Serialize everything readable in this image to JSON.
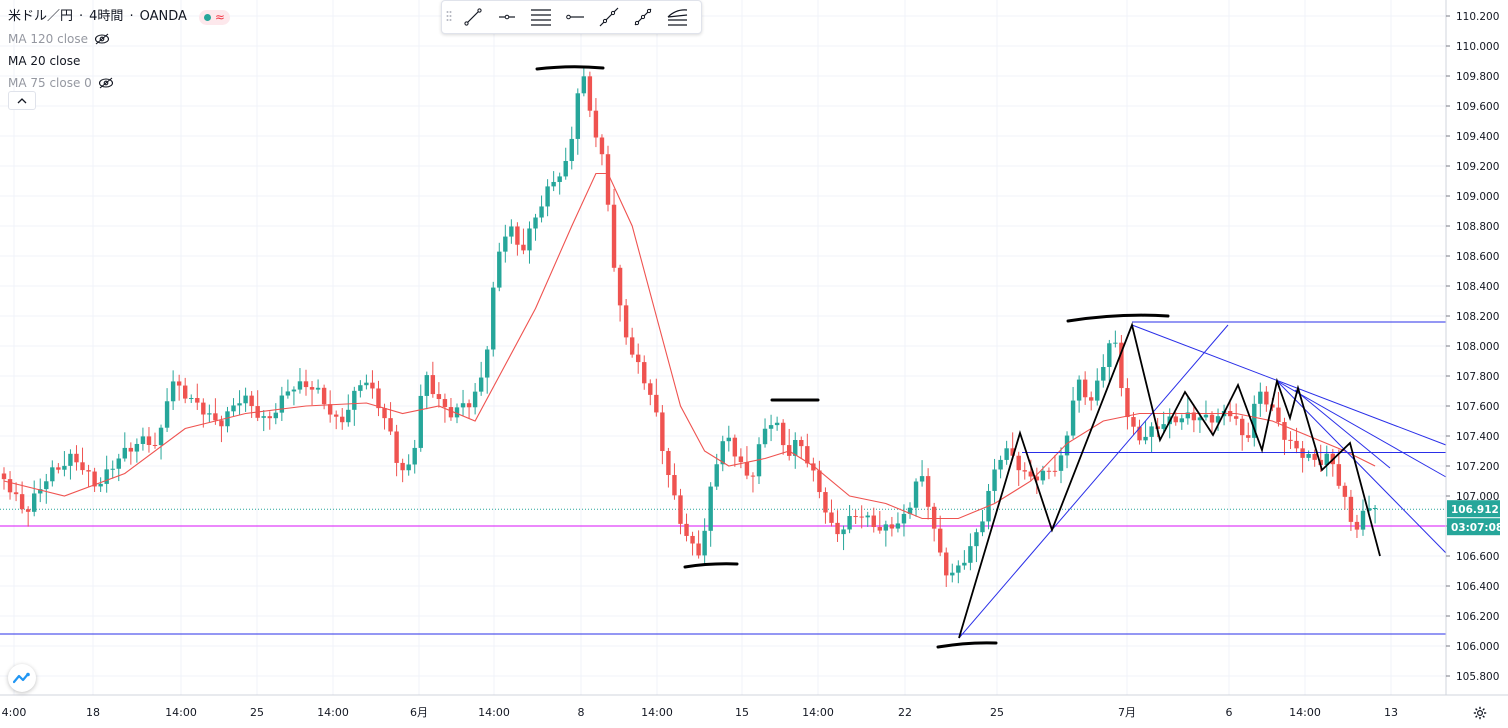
{
  "header": {
    "symbol": "米ドル／円",
    "interval": "4時間",
    "broker": "OANDA",
    "separator": " · "
  },
  "indicators": [
    {
      "label": "MA 120 close",
      "hidden": true
    },
    {
      "label": "MA 20 close",
      "hidden": false
    },
    {
      "label": "MA 75 close 0",
      "hidden": true
    }
  ],
  "colors": {
    "up": "#26a69a",
    "down": "#ef5350",
    "ma20": "#ef5350",
    "hline_magenta": "#e040fb",
    "trend_blue": "#2a2fe8",
    "drawing_black": "#000000",
    "grid": "#f0f3fa",
    "price_label_bg": "#26a69a"
  },
  "price_axis": {
    "ticks": [
      "110.200",
      "110.000",
      "109.800",
      "109.600",
      "109.400",
      "109.200",
      "109.000",
      "108.800",
      "108.600",
      "108.400",
      "108.200",
      "108.000",
      "107.800",
      "107.600",
      "107.400",
      "107.200",
      "107.000",
      "106.800",
      "106.600",
      "106.400",
      "106.200",
      "106.000",
      "105.800"
    ],
    "last_price": "106.912",
    "countdown": "03:07:08"
  },
  "time_axis": {
    "labels": [
      "4:00",
      "18",
      "14:00",
      "25",
      "14:00",
      "6月",
      "14:00",
      "8",
      "14:00",
      "15",
      "14:00",
      "22",
      "25",
      "7月",
      "6",
      "14:00",
      "13"
    ]
  },
  "toolbar": {
    "tools": [
      "trend-line-icon",
      "ray-icon",
      "parallel-channel-icon",
      "horizontal-ray-icon",
      "extended-line-icon",
      "info-line-icon",
      "fib-fan-icon"
    ]
  },
  "chart_data": {
    "type": "candlestick",
    "symbol": "米ドル／円",
    "interval": "4時間",
    "ylim": [
      105.75,
      110.25
    ],
    "x_labels": [
      "4:00",
      "18",
      "14:00",
      "25",
      "14:00",
      "6月",
      "14:00",
      "8",
      "14:00",
      "15",
      "14:00",
      "22",
      "25",
      "7月",
      "6",
      "14:00",
      "13"
    ],
    "last_price": 106.912,
    "segments": [
      [
        0,
        107.15
      ],
      [
        4,
        106.85
      ],
      [
        8,
        107.15
      ],
      [
        12,
        107.3
      ],
      [
        16,
        107.05
      ],
      [
        20,
        107.25
      ],
      [
        24,
        107.4
      ],
      [
        26,
        107.35
      ],
      [
        28,
        107.8
      ],
      [
        32,
        107.6
      ],
      [
        36,
        107.45
      ],
      [
        40,
        107.7
      ],
      [
        44,
        107.5
      ],
      [
        48,
        107.7
      ],
      [
        52,
        107.72
      ],
      [
        56,
        107.5
      ],
      [
        60,
        107.8
      ],
      [
        64,
        107.45
      ],
      [
        66,
        107.15
      ],
      [
        68,
        107.2
      ],
      [
        70,
        107.85
      ],
      [
        74,
        107.55
      ],
      [
        78,
        107.6
      ],
      [
        80,
        107.8
      ],
      [
        82,
        108.55
      ],
      [
        84,
        108.85
      ],
      [
        86,
        108.65
      ],
      [
        90,
        109.0
      ],
      [
        94,
        109.2
      ],
      [
        96,
        109.85
      ],
      [
        98,
        109.5
      ],
      [
        100,
        109.2
      ],
      [
        102,
        108.35
      ],
      [
        104,
        108.0
      ],
      [
        106,
        107.8
      ],
      [
        108,
        107.6
      ],
      [
        110,
        107.2
      ],
      [
        112,
        106.9
      ],
      [
        114,
        106.7
      ],
      [
        116,
        106.65
      ],
      [
        118,
        107.2
      ],
      [
        120,
        107.4
      ],
      [
        124,
        107.05
      ],
      [
        126,
        107.4
      ],
      [
        128,
        107.55
      ],
      [
        130,
        107.3
      ],
      [
        132,
        107.4
      ],
      [
        134,
        107.2
      ],
      [
        136,
        106.95
      ],
      [
        138,
        106.7
      ],
      [
        142,
        106.9
      ],
      [
        146,
        106.8
      ],
      [
        150,
        106.85
      ],
      [
        152,
        107.15
      ],
      [
        154,
        106.85
      ],
      [
        156,
        106.5
      ],
      [
        158,
        106.5
      ],
      [
        160,
        106.65
      ],
      [
        162,
        106.8
      ],
      [
        164,
        107.1
      ],
      [
        166,
        107.3
      ],
      [
        168,
        107.2
      ],
      [
        170,
        107.1
      ],
      [
        174,
        107.2
      ],
      [
        176,
        107.3
      ],
      [
        178,
        107.8
      ],
      [
        180,
        107.6
      ],
      [
        182,
        107.75
      ],
      [
        184,
        108.1
      ],
      [
        186,
        107.6
      ],
      [
        188,
        107.4
      ],
      [
        190,
        107.45
      ],
      [
        192,
        107.5
      ],
      [
        196,
        107.5
      ],
      [
        200,
        107.5
      ],
      [
        204,
        107.6
      ],
      [
        206,
        107.35
      ],
      [
        208,
        107.7
      ],
      [
        210,
        107.6
      ],
      [
        212,
        107.4
      ],
      [
        214,
        107.3
      ],
      [
        218,
        107.25
      ],
      [
        220,
        107.3
      ],
      [
        222,
        107.05
      ],
      [
        224,
        106.75
      ],
      [
        226,
        106.88
      ],
      [
        227,
        106.912
      ]
    ],
    "ma20_segments": [
      [
        0,
        107.1
      ],
      [
        10,
        107.0
      ],
      [
        20,
        107.15
      ],
      [
        30,
        107.45
      ],
      [
        40,
        107.55
      ],
      [
        50,
        107.6
      ],
      [
        60,
        107.62
      ],
      [
        66,
        107.55
      ],
      [
        72,
        107.6
      ],
      [
        78,
        107.5
      ],
      [
        82,
        107.8
      ],
      [
        88,
        108.25
      ],
      [
        94,
        108.8
      ],
      [
        98,
        109.15
      ],
      [
        100,
        109.15
      ],
      [
        104,
        108.8
      ],
      [
        108,
        108.2
      ],
      [
        112,
        107.6
      ],
      [
        116,
        107.3
      ],
      [
        120,
        107.2
      ],
      [
        126,
        107.25
      ],
      [
        130,
        107.3
      ],
      [
        134,
        107.2
      ],
      [
        140,
        107.0
      ],
      [
        146,
        106.95
      ],
      [
        152,
        106.85
      ],
      [
        158,
        106.85
      ],
      [
        164,
        106.95
      ],
      [
        170,
        107.1
      ],
      [
        176,
        107.35
      ],
      [
        182,
        107.5
      ],
      [
        188,
        107.55
      ],
      [
        196,
        107.55
      ],
      [
        204,
        107.55
      ],
      [
        210,
        107.5
      ],
      [
        216,
        107.4
      ],
      [
        222,
        107.3
      ],
      [
        227,
        107.2
      ]
    ],
    "horizontal_lines": [
      106.08,
      106.8,
      107.29,
      108.16
    ],
    "annotations": [
      "W-top",
      "M-pattern",
      "trendlines"
    ]
  }
}
